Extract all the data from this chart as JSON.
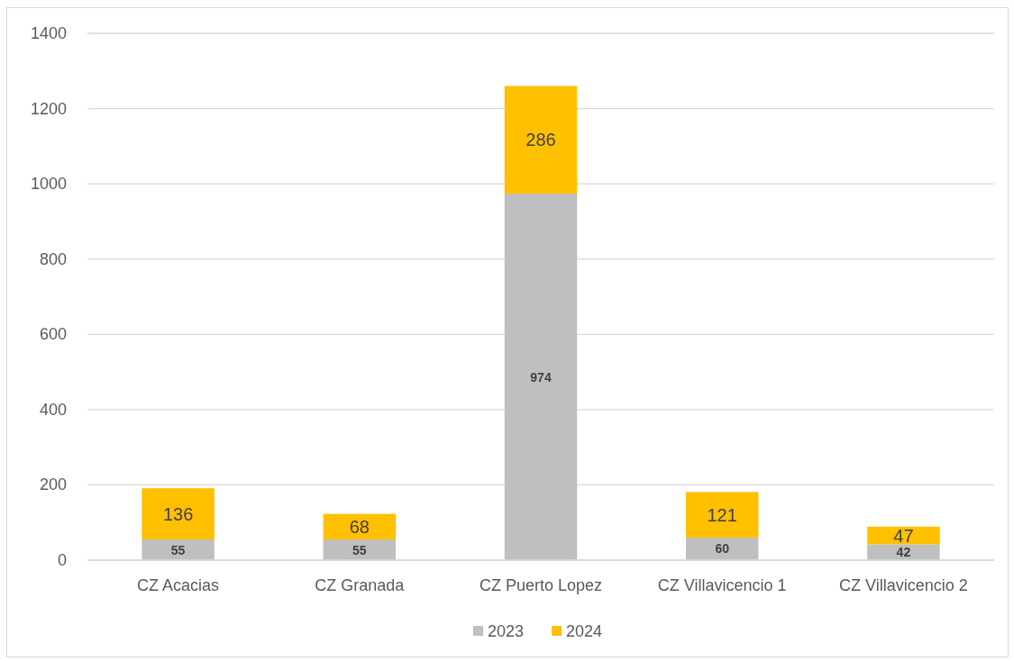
{
  "chart_data": {
    "type": "bar",
    "categories": [
      "CZ Acacias",
      "CZ Granada",
      "CZ Puerto Lopez",
      "CZ Villavicencio 1",
      "CZ Villavicencio 2"
    ],
    "series": [
      {
        "name": "2023",
        "color": "#bfbfbf",
        "values": [
          55,
          55,
          974,
          60,
          42
        ]
      },
      {
        "name": "2024",
        "color": "#ffc000",
        "values": [
          136,
          68,
          286,
          121,
          47
        ]
      }
    ],
    "stacked": true,
    "ylim": [
      0,
      1400
    ],
    "yticks": [
      0,
      200,
      400,
      600,
      800,
      1000,
      1200,
      1400
    ],
    "grid": "y",
    "data_labels": true,
    "legend": "bottom"
  }
}
